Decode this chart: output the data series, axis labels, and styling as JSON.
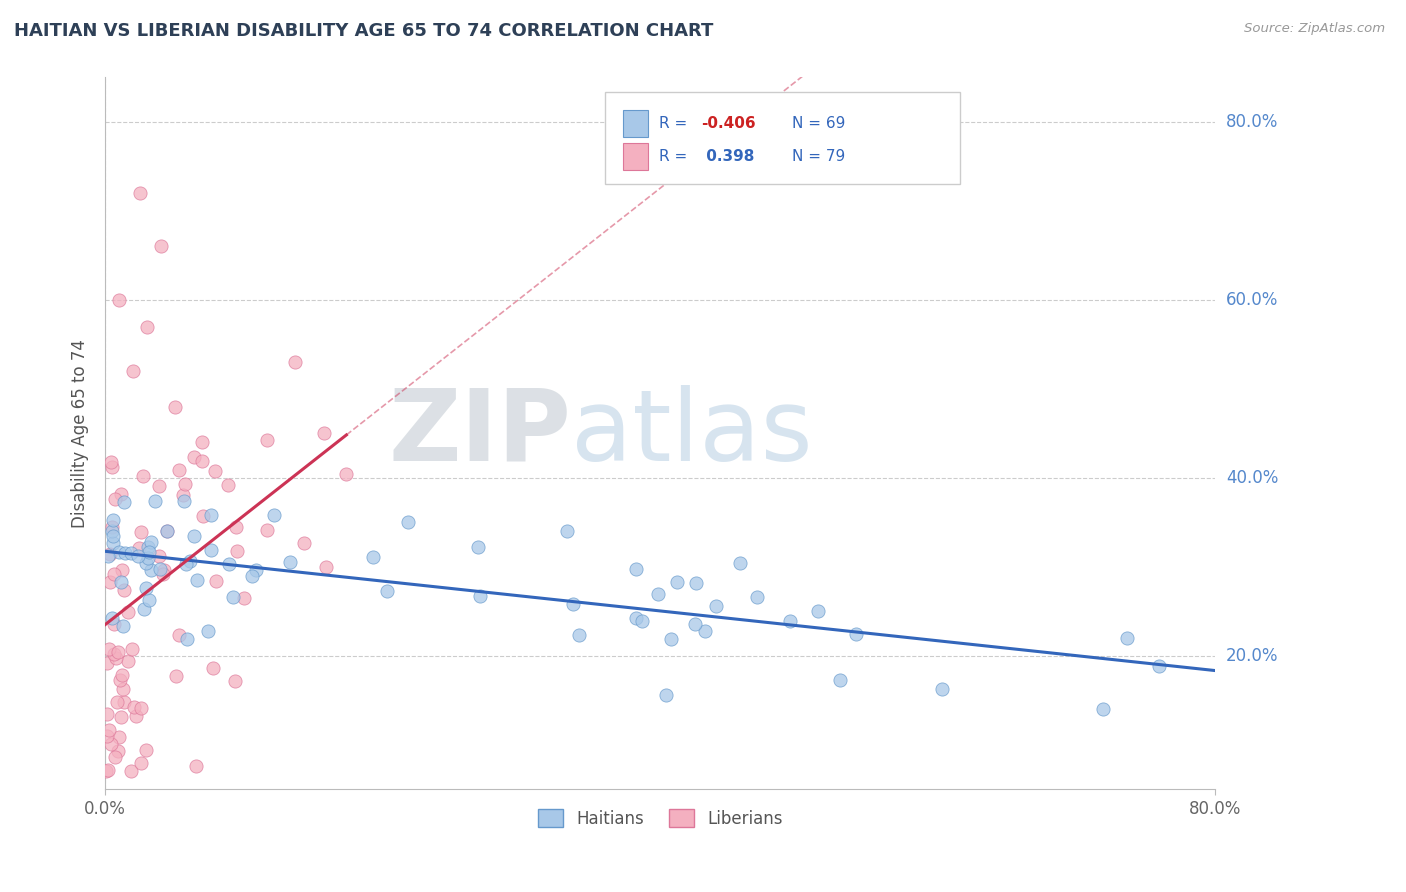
{
  "title": "HAITIAN VS LIBERIAN DISABILITY AGE 65 TO 74 CORRELATION CHART",
  "source_text": "Source: ZipAtlas.com",
  "ylabel": "Disability Age 65 to 74",
  "x_min": 0.0,
  "x_max": 0.8,
  "y_min": 0.05,
  "y_max": 0.85,
  "yticks": [
    0.2,
    0.4,
    0.6,
    0.8
  ],
  "ytick_labels": [
    "20.0%",
    "40.0%",
    "60.0%",
    "80.0%"
  ],
  "title_color": "#2E4057",
  "title_fontsize": 13,
  "watermark_zip": "ZIP",
  "watermark_atlas": "atlas",
  "legend_r_haitian": "-0.406",
  "legend_n_haitian": "69",
  "legend_r_liberian": "0.398",
  "legend_n_liberian": "79",
  "haitian_color": "#A8C8E8",
  "liberian_color": "#F4B0C0",
  "haitian_edge_color": "#6699CC",
  "liberian_edge_color": "#DD7799",
  "trend_haitian_color": "#3366BB",
  "trend_liberian_color": "#CC3355",
  "background_color": "#FFFFFF",
  "grid_color": "#CCCCCC",
  "r_color_negative": "#CC2222",
  "r_color_positive": "#3366BB",
  "n_color": "#3366BB"
}
